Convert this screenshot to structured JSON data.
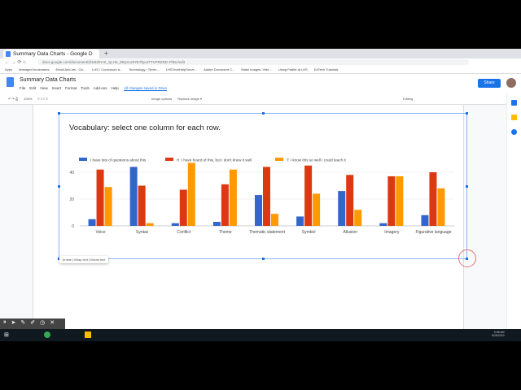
{
  "browser": {
    "tab_title": "Summary Data Charts - Google D",
    "url": "docs.google.com/document/d/1t03kYrZ_1jLH5_d9Q2oz07E7fpu4TTVPRZDD-FfIDc/edit",
    "bookmarks": [
      "Apps",
      "Managed bookmarks",
      "Email Add-ins - Go...",
      "LHS / Curriculum a...",
      "Technology / Techn...",
      "LHSTechHelpSurve...",
      "Adobe Document C...",
      "Make Images, Vide...",
      "Using Padlet at LHS",
      "EdTech Tutorials"
    ]
  },
  "docs": {
    "title": "Summary Data Charts",
    "menu": [
      "File",
      "Edit",
      "View",
      "Insert",
      "Format",
      "Tools",
      "Add-ons",
      "Help"
    ],
    "saved": "All changes saved in Drive",
    "share": "Share"
  },
  "toolbar": {
    "zoom": "100%",
    "image_options": "Image options",
    "replace_image": "Replace image ▾",
    "mode": "Editing"
  },
  "image_toolbar": {
    "inline": "In line",
    "wrap": "Wrap text",
    "break": "Break text"
  },
  "taskbar": {
    "time": "9:38 AM",
    "date": "9/26/2019"
  },
  "colors": {
    "blue": "#3366cc",
    "red": "#dc3912",
    "orange": "#ff9900",
    "accent": "#1a73e8"
  },
  "chart_data": {
    "type": "bar",
    "title": "Vocabulary: select one column for each row.",
    "categories": [
      "Voice",
      "Syntax",
      "Conflict",
      "Theme",
      "Thematic statement",
      "Symbol",
      "Allusion",
      "Imagery",
      "Figurative language"
    ],
    "series": [
      {
        "name": "I have lots of questions about this",
        "values": [
          5,
          44,
          2,
          3,
          23,
          7,
          26,
          2,
          8
        ]
      },
      {
        "name": "H: I have heard of this, but I don't know it well",
        "values": [
          42,
          30,
          27,
          31,
          44,
          45,
          38,
          37,
          40
        ]
      },
      {
        "name": "T: I know this so well I could teach it",
        "values": [
          29,
          2,
          47,
          42,
          9,
          24,
          12,
          37,
          28
        ]
      }
    ],
    "yticks": [
      0,
      20,
      40
    ],
    "ylim": [
      0,
      48
    ],
    "legend": "top",
    "grid": true
  }
}
